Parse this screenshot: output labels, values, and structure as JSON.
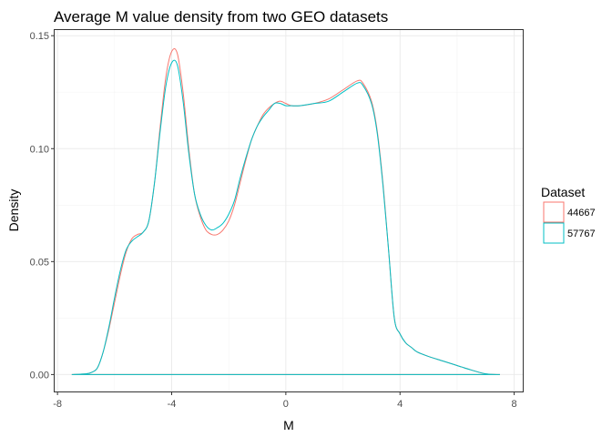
{
  "chart_data": {
    "type": "line",
    "title": "Average M value density from two GEO datasets",
    "xlabel": "M",
    "ylabel": "Density",
    "xlim": [
      -8.1,
      8.3
    ],
    "ylim": [
      -0.0075,
      0.1525
    ],
    "x_ticks": [
      {
        "value": -8,
        "label": "-8"
      },
      {
        "value": -4,
        "label": "-4"
      },
      {
        "value": 0,
        "label": "0"
      },
      {
        "value": 4,
        "label": "4"
      },
      {
        "value": 8,
        "label": "8"
      }
    ],
    "y_ticks": [
      {
        "value": 0,
        "label": "0.00"
      },
      {
        "value": 0.05,
        "label": "0.05"
      },
      {
        "value": 0.1,
        "label": "0.10"
      },
      {
        "value": 0.15,
        "label": "0.15"
      }
    ],
    "grid": true,
    "legend": {
      "title": "Dataset",
      "position": "right"
    },
    "series": [
      {
        "name": "44667",
        "color": "#F8766D",
        "x": [
          -7.5,
          -7.0,
          -6.8,
          -6.6,
          -6.4,
          -6.2,
          -6.0,
          -5.8,
          -5.6,
          -5.4,
          -5.2,
          -5.0,
          -4.8,
          -4.6,
          -4.4,
          -4.2,
          -4.0,
          -3.8,
          -3.6,
          -3.4,
          -3.2,
          -3.0,
          -2.8,
          -2.6,
          -2.4,
          -2.2,
          -2.0,
          -1.8,
          -1.6,
          -1.4,
          -1.2,
          -1.0,
          -0.8,
          -0.6,
          -0.4,
          -0.2,
          0.0,
          0.2,
          0.5,
          1.0,
          1.5,
          2.0,
          2.5,
          2.7,
          3.0,
          3.2,
          3.4,
          3.6,
          3.8,
          4.0,
          4.2,
          4.4,
          4.6,
          5.0,
          5.5,
          6.0,
          6.5,
          7.0,
          7.5
        ],
        "y": [
          0.0,
          0.0003,
          0.001,
          0.003,
          0.01,
          0.02,
          0.032,
          0.044,
          0.054,
          0.06,
          0.062,
          0.063,
          0.068,
          0.085,
          0.11,
          0.132,
          0.143,
          0.142,
          0.125,
          0.1,
          0.08,
          0.07,
          0.064,
          0.062,
          0.062,
          0.064,
          0.068,
          0.075,
          0.085,
          0.095,
          0.104,
          0.11,
          0.115,
          0.118,
          0.12,
          0.121,
          0.12,
          0.119,
          0.119,
          0.12,
          0.122,
          0.126,
          0.13,
          0.129,
          0.121,
          0.108,
          0.085,
          0.055,
          0.025,
          0.018,
          0.014,
          0.012,
          0.01,
          0.008,
          0.006,
          0.004,
          0.002,
          0.0003,
          0.0
        ],
        "baseline": [
          -7.5,
          7.5
        ]
      },
      {
        "name": "57767",
        "color": "#00BFC4",
        "x": [
          -7.5,
          -7.0,
          -6.8,
          -6.6,
          -6.4,
          -6.2,
          -6.0,
          -5.8,
          -5.6,
          -5.4,
          -5.2,
          -5.0,
          -4.8,
          -4.6,
          -4.4,
          -4.2,
          -4.0,
          -3.8,
          -3.6,
          -3.4,
          -3.2,
          -3.0,
          -2.8,
          -2.6,
          -2.4,
          -2.2,
          -2.0,
          -1.8,
          -1.6,
          -1.4,
          -1.2,
          -1.0,
          -0.8,
          -0.6,
          -0.4,
          -0.2,
          0.0,
          0.2,
          0.5,
          1.0,
          1.5,
          2.0,
          2.5,
          2.7,
          3.0,
          3.2,
          3.4,
          3.6,
          3.8,
          4.0,
          4.2,
          4.4,
          4.6,
          5.0,
          5.5,
          6.0,
          6.5,
          7.0,
          7.5
        ],
        "y": [
          0.0,
          0.0003,
          0.001,
          0.003,
          0.01,
          0.021,
          0.034,
          0.046,
          0.055,
          0.059,
          0.061,
          0.063,
          0.068,
          0.085,
          0.108,
          0.128,
          0.138,
          0.137,
          0.121,
          0.098,
          0.08,
          0.071,
          0.066,
          0.064,
          0.065,
          0.067,
          0.071,
          0.077,
          0.087,
          0.096,
          0.104,
          0.11,
          0.114,
          0.117,
          0.12,
          0.12,
          0.119,
          0.119,
          0.119,
          0.12,
          0.121,
          0.125,
          0.129,
          0.128,
          0.12,
          0.107,
          0.084,
          0.055,
          0.025,
          0.018,
          0.014,
          0.012,
          0.01,
          0.008,
          0.006,
          0.004,
          0.002,
          0.0003,
          0.0
        ],
        "baseline": [
          -7.5,
          7.5
        ]
      }
    ]
  }
}
